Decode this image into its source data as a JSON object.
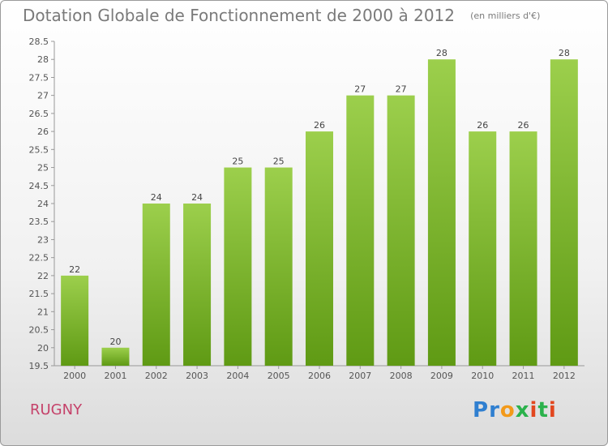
{
  "title": "Dotation Globale de Fonctionnement de 2000 à 2012",
  "unit": "(en milliers d'€)",
  "commune": "RUGNY",
  "logo_text": "Proxiti",
  "colors": {
    "bar_light": "#9ccf4c",
    "bar_dark": "#5f9a14",
    "title": "#7a7a7a",
    "commune": "#c5426a"
  },
  "chart_data": {
    "type": "bar",
    "title": "Dotation Globale de Fonctionnement de 2000 à 2012",
    "subtitle": "(en milliers d'€)",
    "categories": [
      "2000",
      "2001",
      "2002",
      "2003",
      "2004",
      "2005",
      "2006",
      "2007",
      "2008",
      "2009",
      "2010",
      "2011",
      "2012"
    ],
    "values": [
      22,
      20,
      24,
      24,
      25,
      25,
      26,
      27,
      27,
      28,
      26,
      26,
      28
    ],
    "value_labels": [
      "22",
      "20",
      "24",
      "24",
      "25",
      "25",
      "26",
      "27",
      "27",
      "28",
      "26",
      "26",
      "28"
    ],
    "ylim": [
      19.5,
      28.5
    ],
    "yticks": [
      "19.5",
      "20",
      "20.5",
      "21",
      "21.5",
      "22",
      "22.5",
      "23",
      "23.5",
      "24",
      "24.5",
      "25",
      "25.5",
      "26",
      "26.5",
      "27",
      "27.5",
      "28",
      "28.5"
    ],
    "grid": false,
    "xlabel": "",
    "ylabel": ""
  }
}
